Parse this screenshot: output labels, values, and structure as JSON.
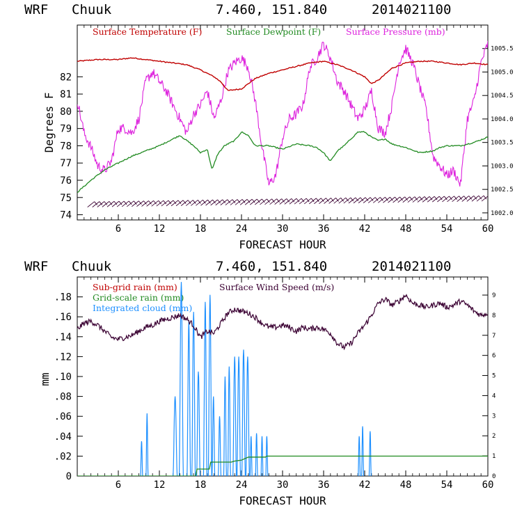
{
  "colors": {
    "temperature": "#c00000",
    "dewpoint": "#228b22",
    "pressure": "#dd22dd",
    "subgrid_rain": "#c00000",
    "gridscale_rain": "#228b22",
    "integrated_cloud": "#1e90ff",
    "wind_speed": "#3a0032"
  },
  "chart_data": [
    {
      "type": "line",
      "header": {
        "model": "WRF",
        "station": "Chuuk",
        "coords": "7.460, 151.840",
        "init": "2014021100"
      },
      "xlabel": "FORECAST HOUR",
      "ylabel": "Degrees F",
      "xlim": [
        0,
        60
      ],
      "ylim": [
        73.7,
        85.0
      ],
      "x_ticks": [
        6,
        12,
        18,
        24,
        30,
        36,
        42,
        48,
        54,
        60
      ],
      "y_ticks": [
        74,
        75,
        76,
        77,
        78,
        79,
        80,
        81,
        82
      ],
      "y2lim": [
        1001.85,
        1006.0
      ],
      "y2_ticks": [
        "1002.0",
        "1002.5",
        "1003.0",
        "1003.5",
        "1004.0",
        "1004.5",
        "1005.0",
        "1005.5"
      ],
      "legend": [
        "Surface Temperature (F)",
        "Surface Dewpoint (F)",
        "Surface Pressure (mb)"
      ],
      "series": [
        {
          "name": "Surface Temperature (F)",
          "axis": "left",
          "x": [
            0,
            3,
            6,
            8,
            10,
            12,
            14,
            16,
            18,
            20,
            21,
            22,
            24,
            25,
            26,
            28,
            30,
            32,
            34,
            36,
            38,
            40,
            42,
            43,
            44,
            46,
            48,
            50,
            52,
            54,
            56,
            58,
            60
          ],
          "values": [
            82.9,
            83.0,
            83.0,
            83.1,
            83.0,
            82.9,
            82.8,
            82.7,
            82.4,
            82.0,
            81.7,
            81.2,
            81.3,
            81.6,
            81.9,
            82.2,
            82.4,
            82.6,
            82.8,
            82.9,
            82.7,
            82.4,
            82.0,
            81.6,
            81.8,
            82.5,
            82.8,
            82.9,
            82.9,
            82.8,
            82.7,
            82.8,
            82.7
          ]
        },
        {
          "name": "Surface Dewpoint (F)",
          "axis": "left",
          "x": [
            0,
            2,
            4,
            6,
            8,
            10,
            12,
            14,
            15,
            16,
            17,
            18,
            19,
            19.7,
            20.5,
            21.5,
            23,
            24,
            25,
            26,
            28,
            30,
            32,
            34,
            35,
            36,
            37,
            38,
            39,
            40,
            41,
            42,
            43,
            44,
            45,
            46,
            48,
            50,
            52,
            53,
            54,
            56,
            58,
            60
          ],
          "values": [
            75.3,
            76.0,
            76.6,
            77.0,
            77.4,
            77.7,
            78.0,
            78.4,
            78.6,
            78.3,
            78.0,
            77.6,
            77.8,
            76.6,
            77.5,
            78.0,
            78.3,
            78.8,
            78.6,
            78.0,
            78.0,
            77.8,
            78.1,
            78.0,
            77.9,
            77.6,
            77.1,
            77.7,
            78.0,
            78.4,
            78.8,
            78.8,
            78.5,
            78.3,
            78.4,
            78.1,
            77.9,
            77.6,
            77.7,
            77.9,
            78.0,
            78.0,
            78.2,
            78.5
          ]
        },
        {
          "name": "Surface Pressure (mb)",
          "axis": "right",
          "x": [
            0,
            1,
            2,
            3,
            4,
            5,
            6,
            7,
            8,
            9,
            10,
            11,
            12,
            13,
            14,
            15,
            16,
            17,
            18,
            19,
            20,
            21,
            22,
            23,
            24,
            25,
            26,
            27,
            28,
            29,
            30,
            31,
            32,
            33,
            34,
            35,
            36,
            37,
            38,
            39,
            40,
            41,
            42,
            43,
            44,
            45,
            46,
            47,
            48,
            49,
            50,
            51,
            52,
            53,
            54,
            55,
            56,
            57,
            58,
            59,
            60
          ],
          "values": [
            1004.4,
            1003.7,
            1003.4,
            1003.0,
            1002.9,
            1003.1,
            1003.8,
            1003.8,
            1003.7,
            1004.0,
            1004.8,
            1005.0,
            1004.8,
            1004.6,
            1004.3,
            1004.0,
            1003.7,
            1004.1,
            1004.3,
            1004.6,
            1004.0,
            1004.4,
            1005.0,
            1005.2,
            1005.3,
            1005.1,
            1004.4,
            1003.4,
            1002.6,
            1002.8,
            1003.6,
            1004.0,
            1004.1,
            1004.3,
            1005.1,
            1005.3,
            1005.6,
            1005.3,
            1004.8,
            1004.6,
            1004.3,
            1004.0,
            1004.2,
            1004.6,
            1003.8,
            1003.7,
            1004.3,
            1005.2,
            1005.5,
            1005.2,
            1004.7,
            1004.2,
            1003.2,
            1003.0,
            1002.8,
            1002.9,
            1002.6,
            1004.0,
            1004.4,
            1005.2,
            1005.6
          ]
        }
      ],
      "wind_barbs": "row of wind barbs along bottom"
    },
    {
      "type": "line",
      "header": {
        "model": "WRF",
        "station": "Chuuk",
        "coords": "7.460, 151.840",
        "init": "2014021100"
      },
      "xlabel": "FORECAST HOUR",
      "ylabel": "mm",
      "xlim": [
        0,
        60
      ],
      "ylim": [
        0,
        0.2
      ],
      "x_ticks": [
        6,
        12,
        18,
        24,
        30,
        36,
        42,
        48,
        54,
        60
      ],
      "y_ticks": [
        0,
        0.02,
        0.04,
        0.06,
        0.08,
        0.1,
        0.12,
        0.14,
        0.16,
        0.18
      ],
      "y_tick_labels": [
        "0",
        ".02",
        ".04",
        ".06",
        ".08",
        ".10",
        ".12",
        ".14",
        ".16",
        ".18"
      ],
      "y2lim": [
        0,
        9.9
      ],
      "y2_ticks": [
        0,
        1,
        2,
        3,
        4,
        5,
        6,
        7,
        8,
        9
      ],
      "legend": [
        "Sub-grid rain (mm)",
        "Surface Wind Speed (m/s)",
        "Grid-scale rain (mm)",
        "Integrated cloud (mm)"
      ],
      "series": [
        {
          "name": "Grid-scale rain (mm)",
          "axis": "left",
          "x": [
            0,
            17.3,
            17.5,
            19.3,
            19.5,
            22.5,
            23,
            24,
            25,
            27.5,
            27.7,
            60
          ],
          "values": [
            0,
            0,
            0.007,
            0.007,
            0.014,
            0.014,
            0.015,
            0.016,
            0.019,
            0.019,
            0.02,
            0.02
          ]
        },
        {
          "name": "Integrated cloud (mm)",
          "axis": "left",
          "spikes": [
            {
              "x": 9.4,
              "w": 0.3,
              "peak": 0.035
            },
            {
              "x": 10.2,
              "w": 0.3,
              "peak": 0.063
            },
            {
              "x": 14.3,
              "w": 0.6,
              "peak": 0.08
            },
            {
              "x": 15.2,
              "w": 0.6,
              "peak": 0.195
            },
            {
              "x": 16.3,
              "w": 0.5,
              "peak": 0.155
            },
            {
              "x": 17.0,
              "w": 0.5,
              "peak": 0.165
            },
            {
              "x": 17.7,
              "w": 0.5,
              "peak": 0.105
            },
            {
              "x": 18.7,
              "w": 0.5,
              "peak": 0.175
            },
            {
              "x": 19.4,
              "w": 0.5,
              "peak": 0.182
            },
            {
              "x": 19.9,
              "w": 0.4,
              "peak": 0.08
            },
            {
              "x": 20.8,
              "w": 0.4,
              "peak": 0.06
            },
            {
              "x": 21.6,
              "w": 0.4,
              "peak": 0.1
            },
            {
              "x": 22.2,
              "w": 0.4,
              "peak": 0.11
            },
            {
              "x": 23.0,
              "w": 0.5,
              "peak": 0.12
            },
            {
              "x": 23.6,
              "w": 0.5,
              "peak": 0.12
            },
            {
              "x": 24.3,
              "w": 0.5,
              "peak": 0.127
            },
            {
              "x": 24.9,
              "w": 0.5,
              "peak": 0.12
            },
            {
              "x": 25.4,
              "w": 0.3,
              "peak": 0.04
            },
            {
              "x": 26.2,
              "w": 0.3,
              "peak": 0.043
            },
            {
              "x": 27.0,
              "w": 0.3,
              "peak": 0.04
            },
            {
              "x": 27.7,
              "w": 0.3,
              "peak": 0.04
            },
            {
              "x": 41.2,
              "w": 0.3,
              "peak": 0.04
            },
            {
              "x": 41.7,
              "w": 0.3,
              "peak": 0.05
            },
            {
              "x": 42.8,
              "w": 0.3,
              "peak": 0.045
            }
          ]
        },
        {
          "name": "Surface Wind Speed (m/s)",
          "axis": "right",
          "x": [
            0,
            1,
            2,
            3,
            4,
            5,
            6,
            7,
            8,
            9,
            10,
            11,
            12,
            13,
            14,
            15,
            16,
            17,
            18,
            19,
            20,
            21,
            22,
            23,
            24,
            25,
            26,
            27,
            28,
            29,
            30,
            31,
            32,
            33,
            34,
            35,
            36,
            37,
            38,
            39,
            40,
            41,
            42,
            43,
            44,
            45,
            46,
            47,
            48,
            49,
            50,
            51,
            52,
            53,
            54,
            55,
            56,
            57,
            58,
            59,
            60
          ],
          "values": [
            7.3,
            7.6,
            7.7,
            7.5,
            7.2,
            6.9,
            6.8,
            6.9,
            7.0,
            7.2,
            7.4,
            7.5,
            7.7,
            7.8,
            7.9,
            8.0,
            7.8,
            7.5,
            6.9,
            7.2,
            7.1,
            7.6,
            8.1,
            8.3,
            8.2,
            8.1,
            7.9,
            7.6,
            7.4,
            7.4,
            7.5,
            7.4,
            7.2,
            7.4,
            7.3,
            7.4,
            7.3,
            7.1,
            6.6,
            6.4,
            6.6,
            7.1,
            7.5,
            8.0,
            8.6,
            8.8,
            8.5,
            8.7,
            9.0,
            8.6,
            8.5,
            8.4,
            8.5,
            8.6,
            8.4,
            8.5,
            8.7,
            8.5,
            8.2,
            8.0,
            8.1
          ]
        }
      ]
    }
  ]
}
